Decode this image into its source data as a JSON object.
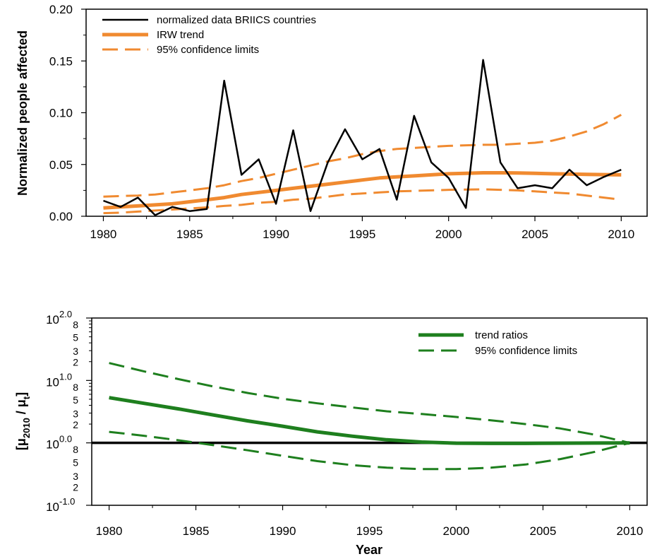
{
  "chart_data": [
    {
      "id": "top",
      "type": "line",
      "title": "",
      "xlabel": "",
      "ylabel": "Normalized people affected",
      "xlim": [
        1979,
        2011.5
      ],
      "ylim": [
        0,
        0.2
      ],
      "xticks": [
        1980,
        1985,
        1990,
        1995,
        2000,
        2005,
        2010
      ],
      "yticks": [
        0.0,
        0.05,
        0.1,
        0.15,
        0.2
      ],
      "ytick_labels": [
        "0.00",
        "0.05",
        "0.10",
        "0.15",
        "0.20"
      ],
      "legend_position": "top-left",
      "x": [
        1980,
        1981,
        1982,
        1983,
        1984,
        1985,
        1986,
        1987,
        1988,
        1989,
        1990,
        1991,
        1992,
        1993,
        1994,
        1995,
        1996,
        1997,
        1998,
        1999,
        2000,
        2001,
        2002,
        2003,
        2004,
        2005,
        2006,
        2007,
        2008,
        2009,
        2010
      ],
      "series": [
        {
          "name": "normalized data BRIICS countries",
          "color": "#000000",
          "style": "solid-thin",
          "values": [
            0.015,
            0.009,
            0.018,
            0.001,
            0.009,
            0.005,
            0.007,
            0.131,
            0.04,
            0.055,
            0.012,
            0.083,
            0.005,
            0.052,
            0.084,
            0.055,
            0.065,
            0.016,
            0.097,
            0.052,
            0.037,
            0.008,
            0.151,
            0.052,
            0.027,
            0.03,
            0.027,
            0.045,
            0.03,
            0.038,
            0.045
          ]
        },
        {
          "name": "IRW trend",
          "color": "#F08A30",
          "style": "solid-thick",
          "values": [
            0.008,
            0.009,
            0.01,
            0.011,
            0.012,
            0.014,
            0.016,
            0.018,
            0.021,
            0.023,
            0.025,
            0.027,
            0.029,
            0.031,
            0.033,
            0.035,
            0.037,
            0.038,
            0.039,
            0.04,
            0.041,
            0.0415,
            0.042,
            0.042,
            0.0418,
            0.0415,
            0.041,
            0.0408,
            0.0405,
            0.0402,
            0.04
          ]
        },
        {
          "name": "95% confidence limits",
          "color": "#F08A30",
          "style": "dashed",
          "values": [
            0.019,
            0.0195,
            0.02,
            0.021,
            0.023,
            0.025,
            0.027,
            0.03,
            0.034,
            0.037,
            0.041,
            0.045,
            0.049,
            0.053,
            0.056,
            0.06,
            0.063,
            0.065,
            0.066,
            0.067,
            0.068,
            0.0685,
            0.069,
            0.069,
            0.07,
            0.071,
            0.073,
            0.077,
            0.082,
            0.089,
            0.098
          ]
        },
        {
          "name": "",
          "color": "#F08A30",
          "style": "dashed",
          "values": [
            0.003,
            0.0035,
            0.0045,
            0.0055,
            0.0065,
            0.0075,
            0.0085,
            0.01,
            0.011,
            0.013,
            0.014,
            0.016,
            0.017,
            0.019,
            0.021,
            0.022,
            0.023,
            0.024,
            0.0245,
            0.025,
            0.0255,
            0.0258,
            0.026,
            0.0255,
            0.025,
            0.024,
            0.023,
            0.022,
            0.02,
            0.018,
            0.016
          ]
        }
      ]
    },
    {
      "id": "bottom",
      "type": "line",
      "title": "",
      "xlabel": "Year",
      "ylabel": "[μ2010 / μt]",
      "ylabel_parts": {
        "open": "[μ",
        "sub1": "2010",
        "mid": " / μ",
        "sub2": "t",
        "close": "]"
      },
      "yscale": "log",
      "xlim": [
        1979,
        2011
      ],
      "ylim_exp": [
        -1,
        2
      ],
      "xticks": [
        1980,
        1985,
        1990,
        1995,
        2000,
        2005,
        2010
      ],
      "ytick_labels": [
        {
          "base": "10",
          "exp": "2.0",
          "value_exp": 2
        },
        {
          "base": "10",
          "exp": "1.0",
          "value_exp": 1
        },
        {
          "base": "10",
          "exp": "0.0",
          "value_exp": 0
        },
        {
          "base": "10",
          "exp": "-1.0",
          "value_exp": -1
        }
      ],
      "minor_tick_labels": [
        "8",
        "5",
        "3",
        "2"
      ],
      "legend_position": "top-right",
      "reference_line": {
        "value": 1,
        "color": "#000000"
      },
      "x": [
        1980,
        1982,
        1984,
        1986,
        1988,
        1990,
        1992,
        1994,
        1996,
        1998,
        2000,
        2002,
        2004,
        2006,
        2008,
        2010
      ],
      "series": [
        {
          "name": "trend ratios",
          "color": "#1E7F1E",
          "style": "solid-thick",
          "values": [
            5.3,
            4.3,
            3.5,
            2.8,
            2.25,
            1.85,
            1.5,
            1.28,
            1.12,
            1.03,
            0.99,
            0.98,
            0.98,
            0.99,
            0.995,
            1.0
          ]
        },
        {
          "name": "95% confidence limits",
          "color": "#1E7F1E",
          "style": "dashed",
          "values": [
            19,
            14,
            10.5,
            8.0,
            6.3,
            5.1,
            4.3,
            3.7,
            3.2,
            2.9,
            2.6,
            2.3,
            2.0,
            1.7,
            1.35,
            1.0
          ]
        },
        {
          "name": "",
          "color": "#1E7F1E",
          "style": "dashed",
          "values": [
            1.5,
            1.3,
            1.1,
            0.92,
            0.76,
            0.62,
            0.51,
            0.44,
            0.4,
            0.38,
            0.38,
            0.4,
            0.45,
            0.55,
            0.72,
            1.0
          ]
        }
      ]
    }
  ]
}
